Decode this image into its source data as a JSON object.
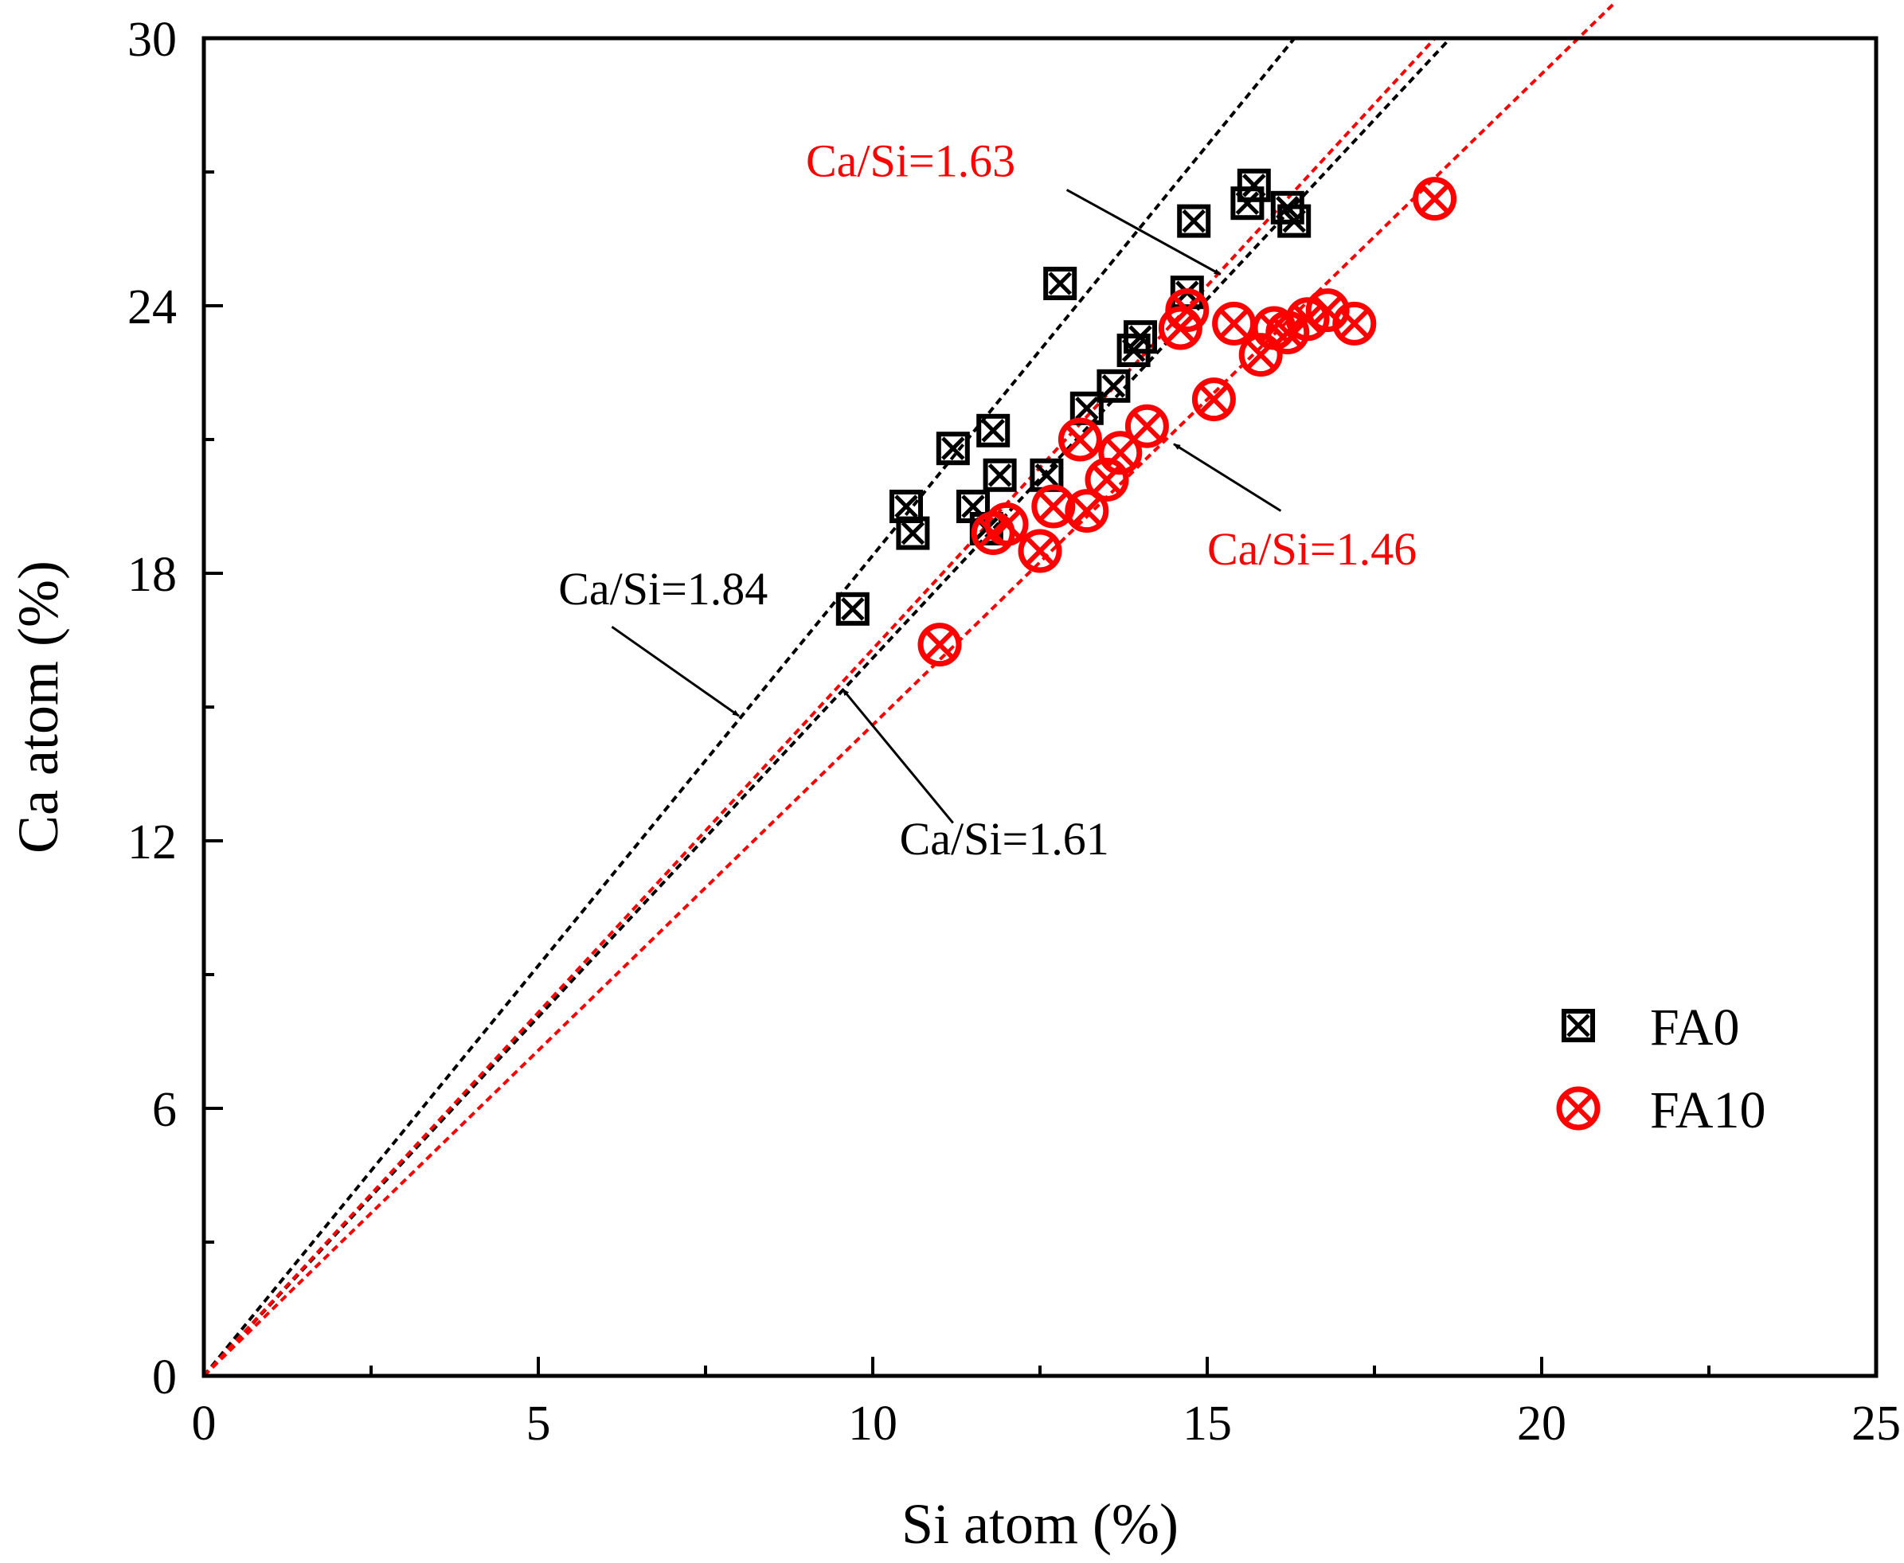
{
  "chart_data": {
    "type": "scatter",
    "xlabel": "Si atom (%)",
    "ylabel": "Ca atom (%)",
    "xlim": [
      0,
      25
    ],
    "ylim": [
      0,
      30
    ],
    "x_ticks": [
      "0",
      "5",
      "10",
      "15",
      "20",
      "25"
    ],
    "y_ticks": [
      "0",
      "6",
      "12",
      "18",
      "24",
      "30"
    ],
    "grid": false,
    "legend_position": "bottom-right",
    "series": [
      {
        "name": "FA0",
        "marker": "boxed-x",
        "color": "#000000",
        "points": [
          [
            9.7,
            17.2
          ],
          [
            10.5,
            19.5
          ],
          [
            10.6,
            18.9
          ],
          [
            11.2,
            20.8
          ],
          [
            11.5,
            19.5
          ],
          [
            11.7,
            19.0
          ],
          [
            11.8,
            21.2
          ],
          [
            11.9,
            20.2
          ],
          [
            12.6,
            20.2
          ],
          [
            12.8,
            24.5
          ],
          [
            13.2,
            21.7
          ],
          [
            13.6,
            22.2
          ],
          [
            13.9,
            23.0
          ],
          [
            14.0,
            23.3
          ],
          [
            14.7,
            24.3
          ],
          [
            14.8,
            25.9
          ],
          [
            15.6,
            26.3
          ],
          [
            15.7,
            26.7
          ],
          [
            16.2,
            26.2
          ],
          [
            16.3,
            25.9
          ]
        ]
      },
      {
        "name": "FA10",
        "marker": "circled-x",
        "color": "#ff0000",
        "points": [
          [
            11.0,
            16.4
          ],
          [
            11.8,
            18.9
          ],
          [
            12.0,
            19.1
          ],
          [
            12.5,
            18.5
          ],
          [
            12.7,
            19.5
          ],
          [
            13.2,
            19.4
          ],
          [
            13.1,
            21.0
          ],
          [
            13.5,
            20.1
          ],
          [
            13.7,
            20.7
          ],
          [
            14.1,
            21.3
          ],
          [
            14.6,
            23.5
          ],
          [
            14.7,
            23.9
          ],
          [
            15.1,
            21.9
          ],
          [
            15.4,
            23.6
          ],
          [
            15.8,
            22.9
          ],
          [
            16.0,
            23.5
          ],
          [
            16.2,
            23.4
          ],
          [
            16.5,
            23.7
          ],
          [
            16.8,
            23.9
          ],
          [
            17.2,
            23.6
          ],
          [
            18.4,
            26.4
          ]
        ]
      }
    ],
    "reference_lines": [
      {
        "label": "Ca/Si=1.84",
        "slope": 1.84,
        "color": "#000000",
        "x_end": 16.3
      },
      {
        "label": "Ca/Si=1.61",
        "slope": 1.61,
        "color": "#000000",
        "x_end": 18.6
      },
      {
        "label": "Ca/Si=1.63",
        "slope": 1.63,
        "color": "#ff0000",
        "x_end": 18.4
      },
      {
        "label": "Ca/Si=1.46",
        "slope": 1.46,
        "color": "#ff0000",
        "x_end": 21.1
      }
    ],
    "annotations": [
      {
        "text": "Ca/Si=1.84",
        "color": "#000000",
        "text_at": [
          5.3,
          17.3
        ],
        "arrow_from": [
          6.1,
          16.8
        ],
        "arrow_to": [
          8.0,
          14.8
        ]
      },
      {
        "text": "Ca/Si=1.61",
        "color": "#000000",
        "text_at": [
          10.4,
          11.7
        ],
        "arrow_from": [
          11.2,
          12.4
        ],
        "arrow_to": [
          9.55,
          15.4
        ]
      },
      {
        "text": "Ca/Si=1.63",
        "color": "#ff0000",
        "text_at": [
          9.0,
          26.9
        ],
        "arrow_from": [
          12.9,
          26.6
        ],
        "arrow_to": [
          15.2,
          24.7
        ]
      },
      {
        "text": "Ca/Si=1.46",
        "color": "#ff0000",
        "text_at": [
          15.0,
          18.2
        ],
        "arrow_from": [
          16.1,
          19.4
        ],
        "arrow_to": [
          14.5,
          20.9
        ]
      }
    ]
  }
}
